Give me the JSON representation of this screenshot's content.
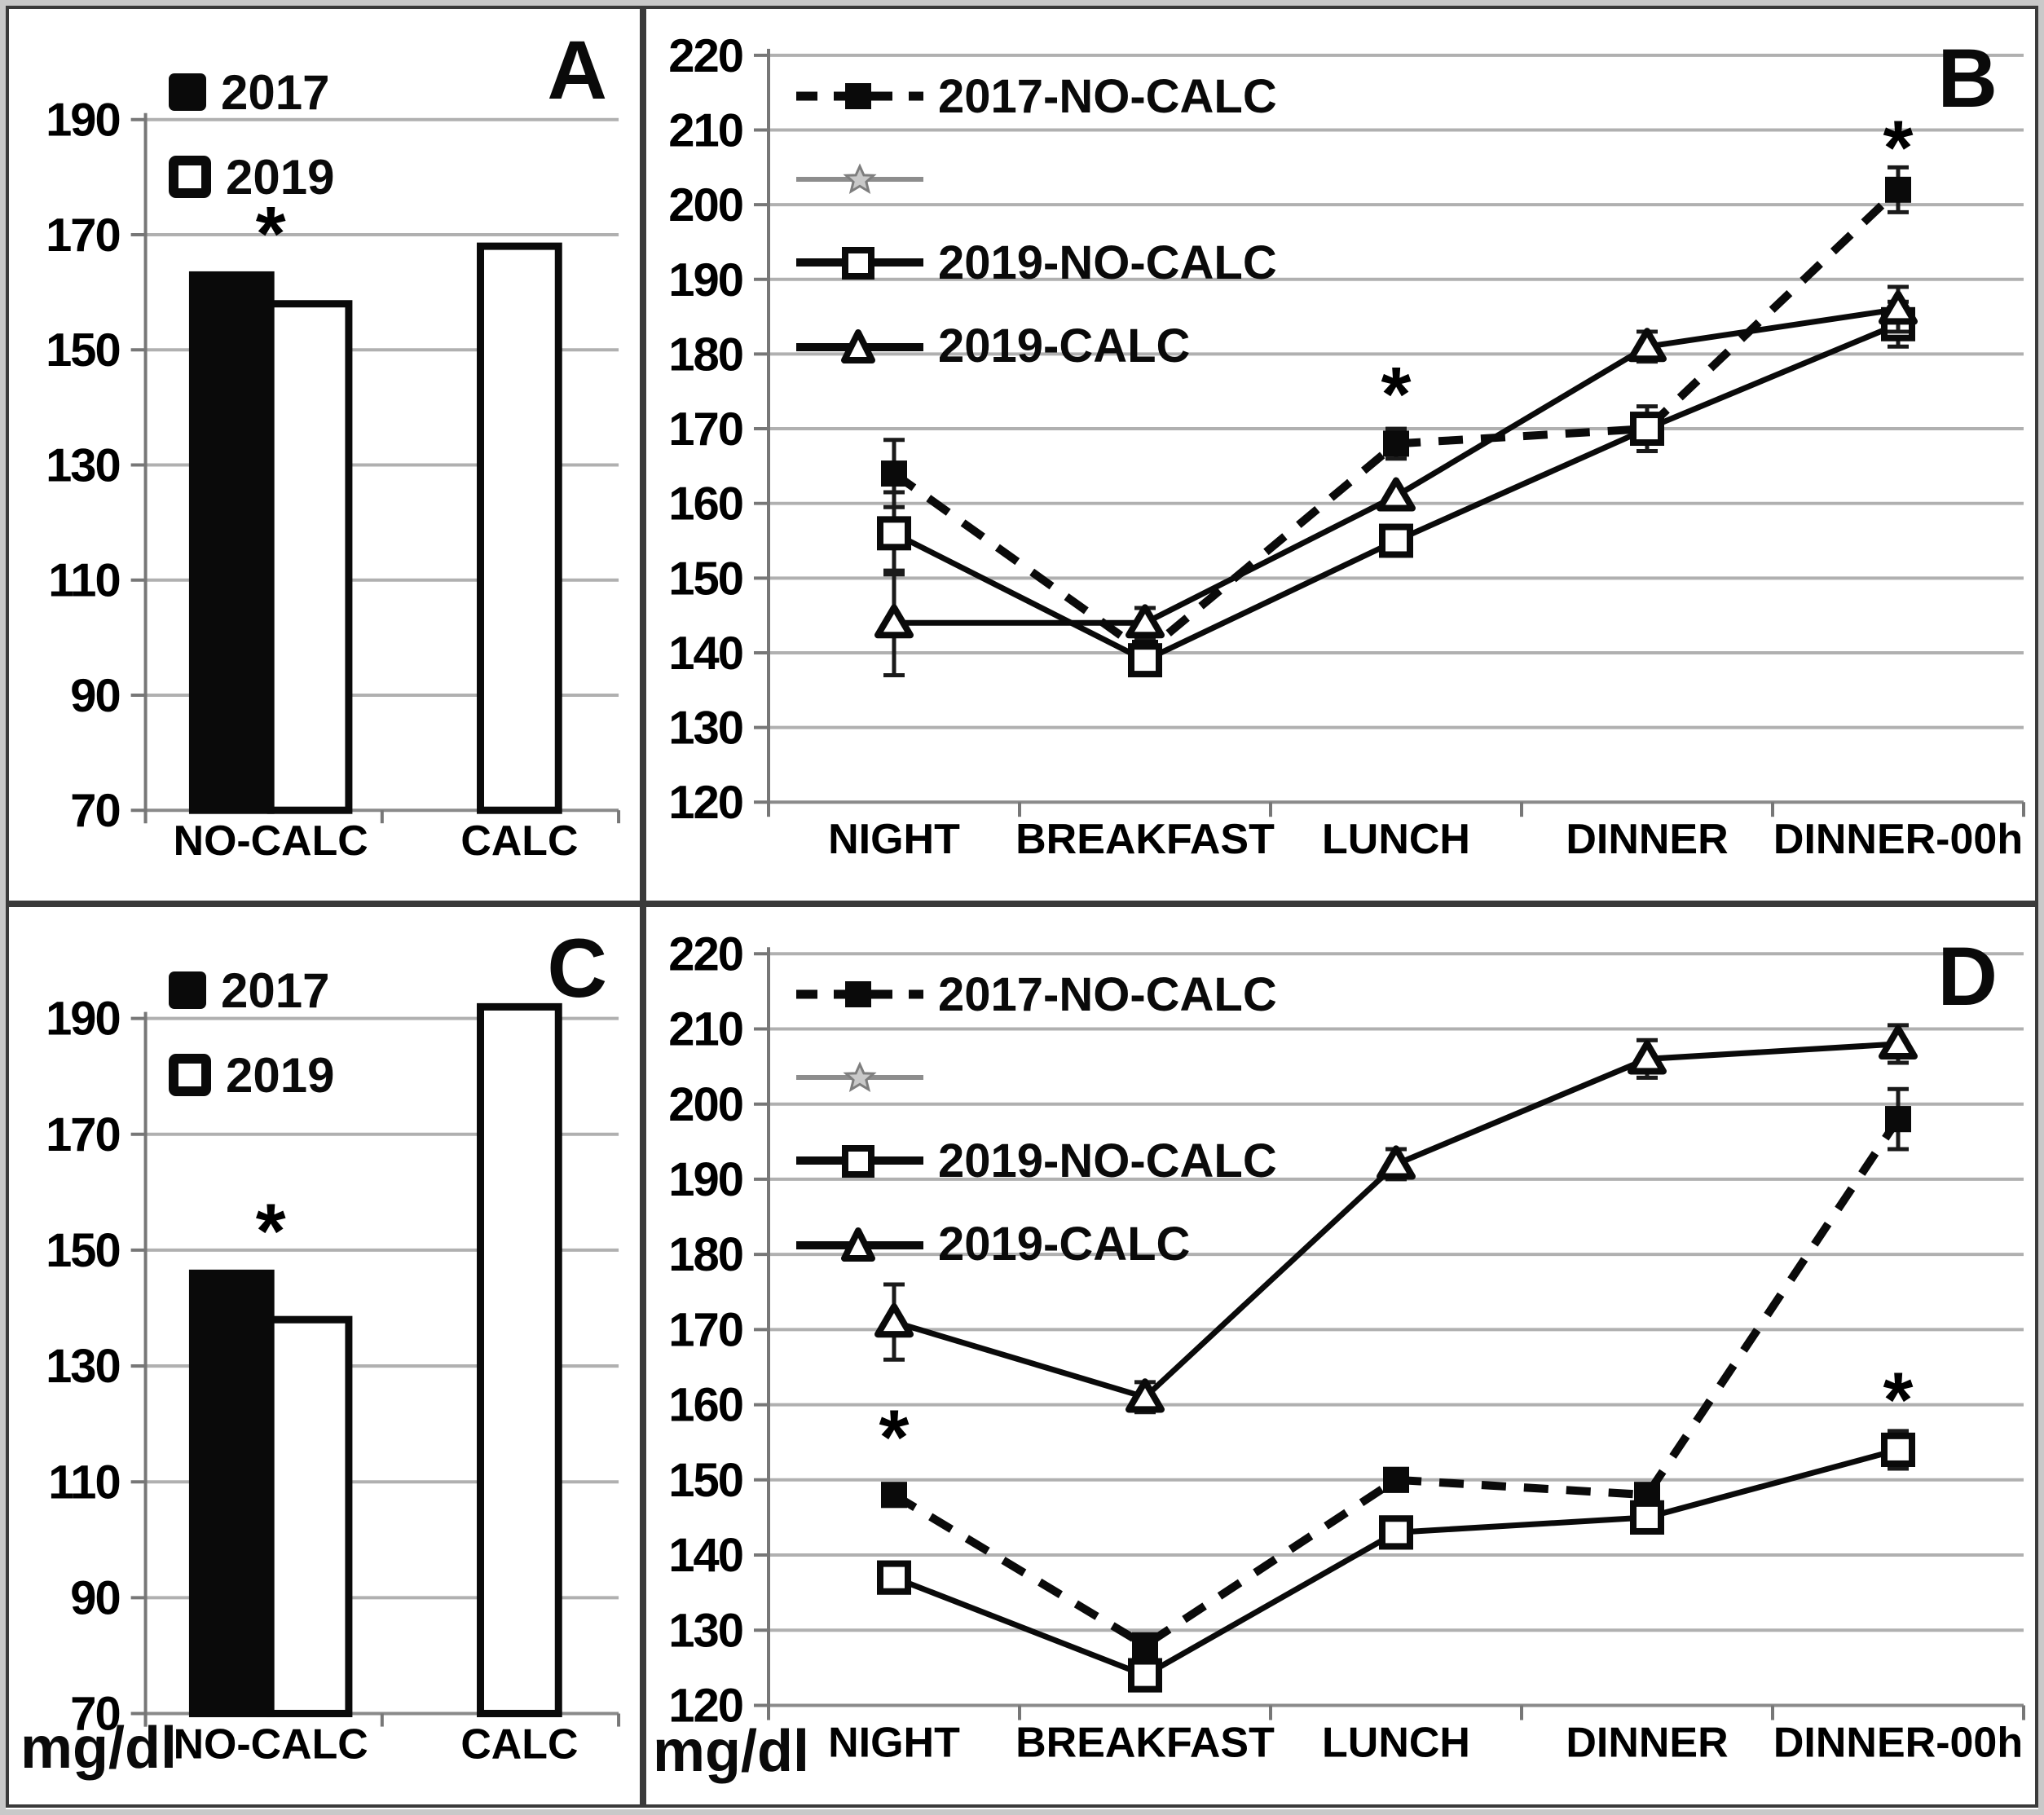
{
  "figure": {
    "unit_label": "mg/dl",
    "colors": {
      "ink": "#0a0a0a",
      "grid": "#b0b0b0",
      "axis": "#777777",
      "legend_star_line": "#8d8d8d",
      "legend_star_fill": "#c9c9c9",
      "frame": "#c9c9c9"
    }
  },
  "chart_data": [
    {
      "panel": "A",
      "type": "bar",
      "categories": [
        "NO-CALC",
        "CALC"
      ],
      "ylim": [
        70,
        190
      ],
      "yticks": [
        70,
        90,
        110,
        130,
        150,
        170,
        190
      ],
      "series": [
        {
          "name": "2017",
          "fill": "black",
          "values": [
            163,
            null
          ]
        },
        {
          "name": "2019",
          "fill": "white",
          "values": [
            158,
            168
          ]
        }
      ],
      "annotations": [
        {
          "text": "*",
          "ci": 0,
          "v": 172
        }
      ]
    },
    {
      "panel": "B",
      "type": "line",
      "categories": [
        "NIGHT",
        "BREAKFAST",
        "LUNCH",
        "DINNER",
        "DINNER-00h"
      ],
      "ylim": [
        120,
        220
      ],
      "yticks": [
        120,
        130,
        140,
        150,
        160,
        170,
        180,
        190,
        200,
        210,
        220
      ],
      "series": [
        {
          "name": "2017-NO-CALC",
          "marker": "filled-square",
          "line": "dashed",
          "values": [
            164,
            140,
            168,
            170,
            202
          ],
          "err": [
            4.5,
            0,
            2,
            0,
            3
          ]
        },
        {
          "name": "",
          "marker": "star",
          "line": "solid-gray",
          "values": [],
          "err": []
        },
        {
          "name": "2019-NO-CALC",
          "marker": "open-square",
          "line": "solid",
          "values": [
            156,
            139,
            155,
            170,
            184
          ],
          "err": [
            5.5,
            2,
            2,
            3,
            3
          ]
        },
        {
          "name": "2019-CALC",
          "marker": "open-triangle",
          "line": "solid",
          "values": [
            144,
            144,
            161,
            181,
            186
          ],
          "err": [
            7,
            2,
            0,
            2,
            3
          ]
        }
      ],
      "annotations": [
        {
          "text": "*",
          "ci": 2,
          "v": 176
        },
        {
          "text": "*",
          "ci": 4,
          "v": 209
        }
      ]
    },
    {
      "panel": "C",
      "type": "bar",
      "categories": [
        "NO-CALC",
        "CALC"
      ],
      "ylim": [
        70,
        190
      ],
      "yticks": [
        70,
        90,
        110,
        130,
        150,
        170,
        190
      ],
      "series": [
        {
          "name": "2017",
          "fill": "black",
          "values": [
            146,
            null
          ]
        },
        {
          "name": "2019",
          "fill": "white",
          "values": [
            138,
            192
          ]
        }
      ],
      "annotations": [
        {
          "text": "*",
          "ci": 0,
          "v": 155
        }
      ]
    },
    {
      "panel": "D",
      "type": "line",
      "categories": [
        "NIGHT",
        "BREAKFAST",
        "LUNCH",
        "DINNER",
        "DINNER-00h"
      ],
      "ylim": [
        120,
        220
      ],
      "yticks": [
        120,
        130,
        140,
        150,
        160,
        170,
        180,
        190,
        200,
        210,
        220
      ],
      "series": [
        {
          "name": "2017-NO-CALC",
          "marker": "filled-square",
          "line": "dashed",
          "values": [
            148,
            128,
            150,
            148,
            198
          ],
          "err": [
            0,
            0,
            0,
            0,
            4
          ]
        },
        {
          "name": "",
          "marker": "star",
          "line": "solid-gray",
          "values": [],
          "err": []
        },
        {
          "name": "2019-NO-CALC",
          "marker": "open-square",
          "line": "solid",
          "values": [
            137,
            124,
            143,
            145,
            154
          ],
          "err": [
            0,
            0,
            0,
            0,
            2.5
          ]
        },
        {
          "name": "2019-CALC",
          "marker": "open-triangle",
          "line": "solid",
          "values": [
            171,
            161,
            192,
            206,
            208
          ],
          "err": [
            5,
            2,
            2,
            2.5,
            2.5
          ]
        }
      ],
      "annotations": [
        {
          "text": "*",
          "ci": 0,
          "v": 157
        },
        {
          "text": "*",
          "ci": 4,
          "v": 162
        }
      ]
    }
  ]
}
